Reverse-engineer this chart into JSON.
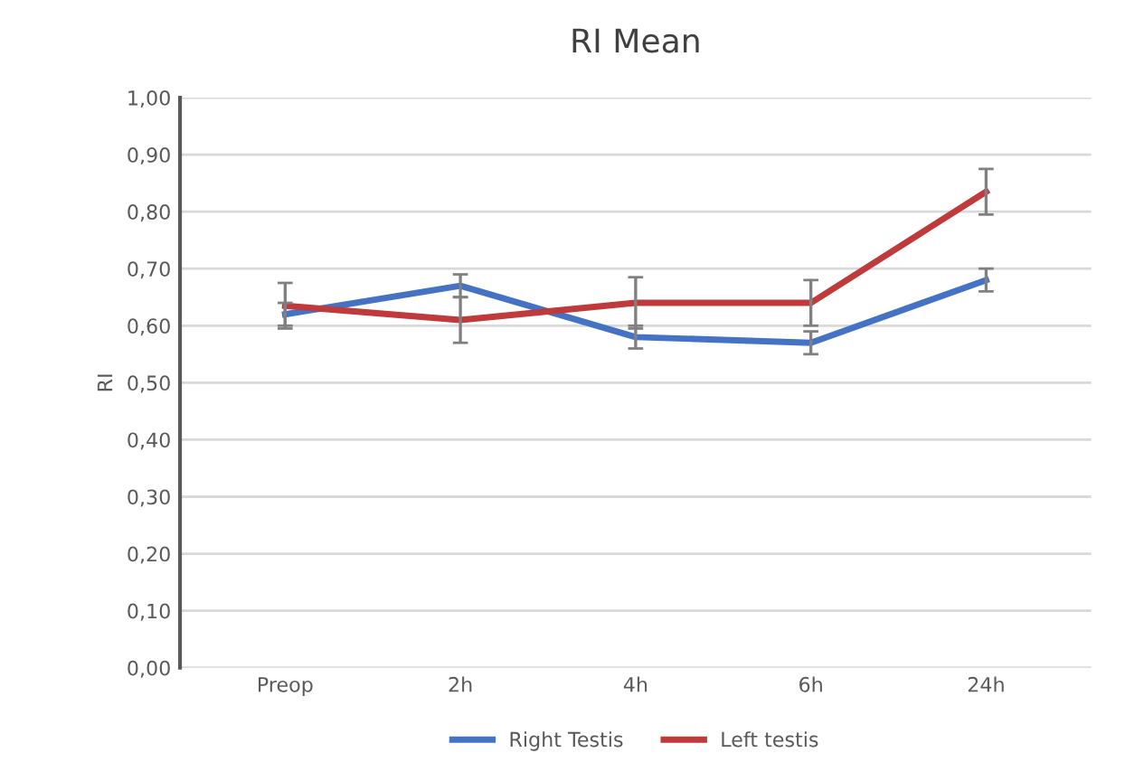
{
  "chart_data": {
    "type": "line",
    "title": "RI Mean",
    "ylabel": "RI",
    "categories": [
      "Preop",
      "2h",
      "4h",
      "6h",
      "24h"
    ],
    "series": [
      {
        "name": "Right Testis",
        "color": "#4472c4",
        "values": [
          0.62,
          0.67,
          0.58,
          0.57,
          0.68
        ],
        "errors": [
          0.02,
          0.02,
          0.02,
          0.02,
          0.02
        ]
      },
      {
        "name": "Left testis",
        "color": "#c0393b",
        "values": [
          0.635,
          0.61,
          0.64,
          0.64,
          0.835
        ],
        "errors": [
          0.04,
          0.04,
          0.045,
          0.04,
          0.04
        ]
      }
    ],
    "ylim": [
      0,
      1
    ],
    "yticks": [
      {
        "value": 0,
        "label": "0,00"
      },
      {
        "value": 0.1,
        "label": "0,10"
      },
      {
        "value": 0.2,
        "label": "0,20"
      },
      {
        "value": 0.3,
        "label": "0,30"
      },
      {
        "value": 0.4,
        "label": "0,40"
      },
      {
        "value": 0.5,
        "label": "0,50"
      },
      {
        "value": 0.6,
        "label": "0,60"
      },
      {
        "value": 0.7,
        "label": "0,70"
      },
      {
        "value": 0.8,
        "label": "0,80"
      },
      {
        "value": 0.9,
        "label": "0,90"
      },
      {
        "value": 1,
        "label": "1,00"
      }
    ],
    "grid": "y",
    "legend": "bottom",
    "marker": "none",
    "line_style": "solid"
  }
}
